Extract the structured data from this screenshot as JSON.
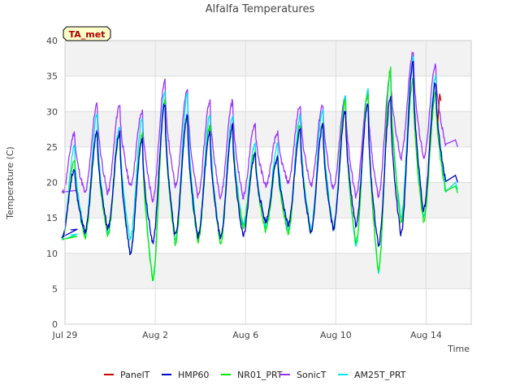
{
  "chart_data": {
    "type": "line",
    "title": "Alfalfa Temperatures",
    "xlabel": "Time",
    "ylabel": "Temperature (C)",
    "badge": "TA_met",
    "xlim_days": [
      0,
      18
    ],
    "ylim": [
      0,
      40
    ],
    "yticks": [
      0,
      5,
      10,
      15,
      20,
      25,
      30,
      35,
      40
    ],
    "xticks": [
      {
        "day": 0,
        "label": "Jul 29"
      },
      {
        "day": 4,
        "label": "Aug 2"
      },
      {
        "day": 8,
        "label": "Aug 6"
      },
      {
        "day": 12,
        "label": "Aug 10"
      },
      {
        "day": 16,
        "label": "Aug 14"
      }
    ],
    "grid": true,
    "legend_position": "bottom",
    "series": [
      {
        "name": "PanelT",
        "color": "#cc0000",
        "day_start": 0.25
      },
      {
        "name": "HMP60",
        "color": "#0000cc",
        "day_start": 0.25
      },
      {
        "name": "NR01_PRT",
        "color": "#00ee00",
        "day_start": 0.25
      },
      {
        "name": "SonicT",
        "color": "#9933ff",
        "day_start": 0.25
      },
      {
        "name": "AM25T_PRT",
        "color": "#00e5ee",
        "day_start": 0.25
      }
    ],
    "daily": {
      "days": [
        0.25,
        0.88,
        1.88,
        2.88,
        3.88,
        4.88,
        5.88,
        6.88,
        7.88,
        8.88,
        9.88,
        10.88,
        11.88,
        12.88,
        13.88,
        14.88,
        15.88,
        16.88
      ],
      "HMP60_min": [
        13.3,
        12.5,
        13.0,
        13.5,
        10.0,
        11.5,
        12.5,
        12.5,
        12.0,
        12.5,
        14.5,
        14.0,
        13.0,
        13.5,
        14.0,
        11.0,
        12.5,
        16.0
      ],
      "HMP60_max": [
        13.5,
        22.0,
        27.0,
        27.0,
        26.0,
        31.0,
        29.5,
        27.0,
        28.0,
        24.0,
        23.5,
        27.5,
        28.0,
        30.0,
        31.0,
        32.0,
        37.0,
        34.0
      ],
      "SonicT_min": [
        18.8,
        18.5,
        18.5,
        18.5,
        19.5,
        17.5,
        19.5,
        18.0,
        18.0,
        18.0,
        19.5,
        20.0,
        19.5,
        19.0,
        18.0,
        18.0,
        23.5,
        23.5
      ],
      "SonicT_max": [
        18.8,
        27.0,
        31.0,
        31.0,
        30.0,
        34.3,
        33.0,
        31.5,
        31.5,
        28.3,
        27.0,
        31.0,
        31.0,
        32.0,
        32.5,
        35.5,
        38.5,
        36.5
      ],
      "NR01_min": [
        12.3,
        11.8,
        12.3,
        12.5,
        10.0,
        6.3,
        11.3,
        11.5,
        11.5,
        13.5,
        13.2,
        12.8,
        13.0,
        13.3,
        11.5,
        7.5,
        14.5,
        14.5
      ],
      "NR01_max": [
        12.5,
        23.0,
        27.0,
        27.0,
        27.0,
        31.5,
        29.5,
        28.0,
        28.0,
        24.5,
        23.5,
        28.0,
        28.5,
        31.5,
        32.5,
        36.0,
        34.5,
        32.5
      ],
      "AM25T_min": [
        12.6,
        12.2,
        12.8,
        12.8,
        12.0,
        6.3,
        11.8,
        12.0,
        12.0,
        14.0,
        13.8,
        13.2,
        13.3,
        13.6,
        11.0,
        7.3,
        15.0,
        15.0
      ],
      "AM25T_max": [
        12.8,
        25.0,
        29.5,
        28.0,
        29.0,
        33.0,
        32.5,
        29.5,
        29.5,
        25.5,
        25.5,
        29.5,
        30.5,
        32.0,
        33.0,
        36.0,
        37.5,
        35.0
      ],
      "PanelT_max_day": 16.6,
      "PanelT_max": 32.5
    },
    "end_values": {
      "SonicT": 25.0,
      "HMP60": 20.0,
      "NR01_PRT": 18.5,
      "AM25T_PRT": 19.0,
      "PanelT": 20.0
    }
  }
}
